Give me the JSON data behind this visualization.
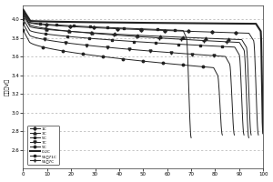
{
  "title": "",
  "xlabel": "",
  "ylabel": "电压（V）",
  "xlim": [
    0,
    100
  ],
  "ylim": [
    2.4,
    4.15
  ],
  "yticks": [
    2.6,
    2.8,
    3.0,
    3.2,
    3.4,
    3.6,
    3.8,
    4.0
  ],
  "xticks": [
    0,
    10,
    20,
    30,
    40,
    50,
    60,
    70,
    80,
    90,
    100
  ],
  "grid_color": "#999999",
  "background_color": "#ffffff",
  "series": [
    {
      "label": "1C",
      "marker": "D",
      "ms": 1.8,
      "lw": 0.7,
      "start_v": 4.08,
      "plateau_v": 3.85,
      "knee_x": 96,
      "drop_end_v": 2.76,
      "cap": 98
    },
    {
      "label": "3C",
      "marker": "^",
      "ms": 2.2,
      "lw": 0.7,
      "start_v": 4.04,
      "plateau_v": 3.78,
      "knee_x": 93,
      "drop_end_v": 2.76,
      "cap": 95
    },
    {
      "label": "5C",
      "marker": "s",
      "ms": 1.8,
      "lw": 0.7,
      "start_v": 4.0,
      "plateau_v": 3.7,
      "knee_x": 90,
      "drop_end_v": 2.76,
      "cap": 92
    },
    {
      "label": "7C",
      "marker": "v",
      "ms": 2.2,
      "lw": 0.7,
      "start_v": 3.95,
      "plateau_v": 3.6,
      "knee_x": 86,
      "drop_end_v": 2.76,
      "cap": 88
    },
    {
      "label": "9C",
      "marker": "o",
      "ms": 1.8,
      "lw": 0.7,
      "start_v": 3.88,
      "plateau_v": 3.48,
      "knee_x": 81,
      "drop_end_v": 2.76,
      "cap": 83
    },
    {
      "label": "0.2C",
      "marker": "none",
      "ms": 0,
      "lw": 1.5,
      "start_v": 4.1,
      "plateau_v": 3.95,
      "knee_x": 99,
      "drop_end_v": 2.78,
      "cap": 100
    },
    {
      "label": "55剆71C",
      "marker": "s",
      "ms": 1.8,
      "lw": 0.7,
      "start_v": 4.09,
      "plateau_v": 3.88,
      "knee_x": 68,
      "drop_end_v": 2.73,
      "cap": 70
    },
    {
      "label": "55剆7C",
      "marker": "+",
      "ms": 2.5,
      "lw": 0.7,
      "start_v": 4.06,
      "plateau_v": 3.75,
      "knee_x": 92,
      "drop_end_v": 2.73,
      "cap": 94
    }
  ]
}
